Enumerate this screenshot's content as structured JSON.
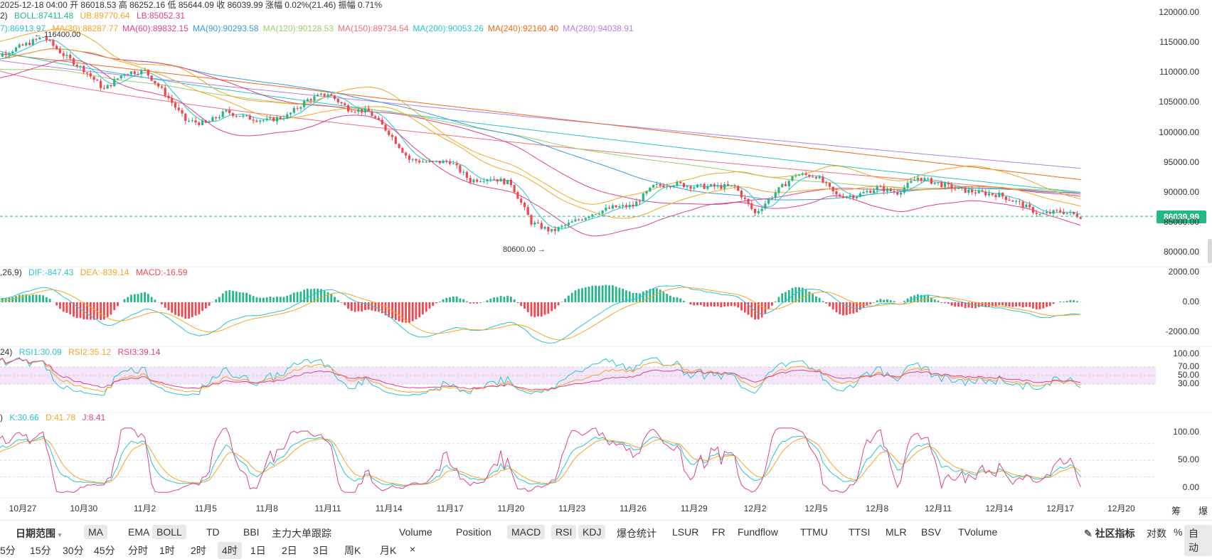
{
  "header": {
    "candle_info": "2025-12-18 04:00  开 86018.53  高 86252.16  低 85644.09  收 86039.99  涨幅 0.02%(21.46)  振幅 0.71%",
    "boll_prefix": "2)",
    "boll": "BOLL:87411.48",
    "ub": "UB:89770.64",
    "lb": "LB:85052.31",
    "ma_prefix": "7):86913.97",
    "ma_items": [
      {
        "label": "MA(30):88287.77",
        "color": "#f5a623"
      },
      {
        "label": "MA(60):89832.15",
        "color": "#e0408a"
      },
      {
        "label": "MA(90):90293.58",
        "color": "#3a9bd8"
      },
      {
        "label": "MA(120):90128.53",
        "color": "#9ccf6e"
      },
      {
        "label": "MA(150):89734.54",
        "color": "#f0707a"
      },
      {
        "label": "MA(200):90053.26",
        "color": "#2ac3cf"
      },
      {
        "label": "MA(240):92160.40",
        "color": "#f06a1a"
      },
      {
        "label": "MA(280):94038.91",
        "color": "#b57ef0"
      }
    ],
    "macd_prefix": ",26,9)",
    "dif": "DIF:-847.43",
    "dea": "DEA:-839.14",
    "macd": "MACD:-16.59",
    "rsi_prefix": "24)",
    "rsi1": "RSI1:30.09",
    "rsi2": "RSI2:35.12",
    "rsi3": "RSI3:39.14",
    "kdj_prefix": ")",
    "k": "K:30.66",
    "d": "D:41.78",
    "j": "J:8.41"
  },
  "colors": {
    "up": "#26b68a",
    "down": "#f0474f",
    "boll_mid": "#26b68a",
    "boll_ub": "#f5a623",
    "boll_lb": "#e0408a",
    "rsi1": "#2ac3cf",
    "rsi2": "#f5a623",
    "rsi3": "#e0408a",
    "k": "#2ac3cf",
    "d": "#f5a623",
    "j": "#e0408a",
    "ma7": "#2ac3cf",
    "rsi_band": "#f3e6fb"
  },
  "chart_data": {
    "type": "candlestick",
    "price_axis": {
      "ticks": [
        "120000.00",
        "115000.00",
        "110000.00",
        "105000.00",
        "100000.00",
        "95000.00",
        "90000.00",
        "85000.00",
        "80000.00"
      ],
      "ylim": [
        80000,
        120000
      ]
    },
    "last_price": "86039.99",
    "annotations": {
      "high": "← 116400.00",
      "low": "80600.00 →"
    },
    "x_ticks": [
      "10月27",
      "10月30",
      "11月2",
      "11月5",
      "11月8",
      "11月11",
      "11月14",
      "11月17",
      "11月20",
      "11月23",
      "11月26",
      "11月29",
      "12月2",
      "12月5",
      "12月8",
      "12月11",
      "12月14",
      "12月17",
      "12月20"
    ],
    "price_path": [
      [
        "10-25",
        111800
      ],
      [
        "10-27",
        114500
      ],
      [
        "10-28",
        116000
      ],
      [
        "10-29",
        113000
      ],
      [
        "10-30",
        110500
      ],
      [
        "10-31",
        107200
      ],
      [
        "11-01",
        110000
      ],
      [
        "11-02",
        110300
      ],
      [
        "11-03",
        106500
      ],
      [
        "11-04",
        102000
      ],
      [
        "11-05",
        101500
      ],
      [
        "11-06",
        103500
      ],
      [
        "11-07",
        102500
      ],
      [
        "11-08",
        102000
      ],
      [
        "11-09",
        102800
      ],
      [
        "11-10",
        105500
      ],
      [
        "11-11",
        106500
      ],
      [
        "11-12",
        104000
      ],
      [
        "11-13",
        103500
      ],
      [
        "11-14",
        100000
      ],
      [
        "11-15",
        95500
      ],
      [
        "11-16",
        95000
      ],
      [
        "11-17",
        95200
      ],
      [
        "11-18",
        92000
      ],
      [
        "11-19",
        92500
      ],
      [
        "11-20",
        91500
      ],
      [
        "11-21",
        85000
      ],
      [
        "11-22",
        83500
      ],
      [
        "11-23",
        85000
      ],
      [
        "11-24",
        86500
      ],
      [
        "11-25",
        87500
      ],
      [
        "11-26",
        87800
      ],
      [
        "11-27",
        91000
      ],
      [
        "11-28",
        91500
      ],
      [
        "11-29",
        91000
      ],
      [
        "11-30",
        91000
      ],
      [
        "12-01",
        91000
      ],
      [
        "12-02",
        86500
      ],
      [
        "12-03",
        90000
      ],
      [
        "12-04",
        93000
      ],
      [
        "12-05",
        92800
      ],
      [
        "12-06",
        89500
      ],
      [
        "12-07",
        89500
      ],
      [
        "12-08",
        90800
      ],
      [
        "12-09",
        90000
      ],
      [
        "12-10",
        92500
      ],
      [
        "12-11",
        91500
      ],
      [
        "12-12",
        90500
      ],
      [
        "12-13",
        90000
      ],
      [
        "12-14",
        89600
      ],
      [
        "12-15",
        88200
      ],
      [
        "12-16",
        86300
      ],
      [
        "12-17",
        86900
      ],
      [
        "12-18",
        86040
      ]
    ],
    "macd_axis": {
      "ticks": [
        "2000.00",
        "0.00",
        "-2000.00"
      ],
      "ylim": [
        -2500,
        2500
      ]
    },
    "rsi_axis": {
      "ticks": [
        "100.00",
        "70.00",
        "50.00",
        "30.00"
      ],
      "ylim": [
        0,
        100
      ]
    },
    "kdj_axis": {
      "ticks": [
        "100.00",
        "50.00",
        "0.00"
      ],
      "ylim": [
        -10,
        110
      ]
    }
  },
  "toolbar": {
    "date_range": "日期范围",
    "indicators_main": [
      "MA",
      "EMA",
      "BOLL",
      "TD",
      "BBI",
      "主力大单跟踪"
    ],
    "indicators_main_selected": [
      "MA",
      "BOLL"
    ],
    "indicators_sub": [
      "Volume",
      "Position",
      "MACD",
      "RSI",
      "KDJ",
      "爆仓统计",
      "LSUR",
      "FR",
      "Fundflow",
      "TTMU",
      "TTSI",
      "MLR",
      "BSV",
      "TVolume"
    ],
    "indicators_sub_selected": [
      "MACD",
      "RSI",
      "KDJ"
    ],
    "community": "社区指标",
    "log": "对数",
    "percent": "%",
    "auto": "自动",
    "right_tags": [
      "筹",
      "爆"
    ]
  },
  "intervals": [
    "5分",
    "15分",
    "30分",
    "45分",
    "分时",
    "1时",
    "2时",
    "4时",
    "1日",
    "2日",
    "3日",
    "周K",
    "月K",
    "×"
  ],
  "interval_selected": "4时"
}
